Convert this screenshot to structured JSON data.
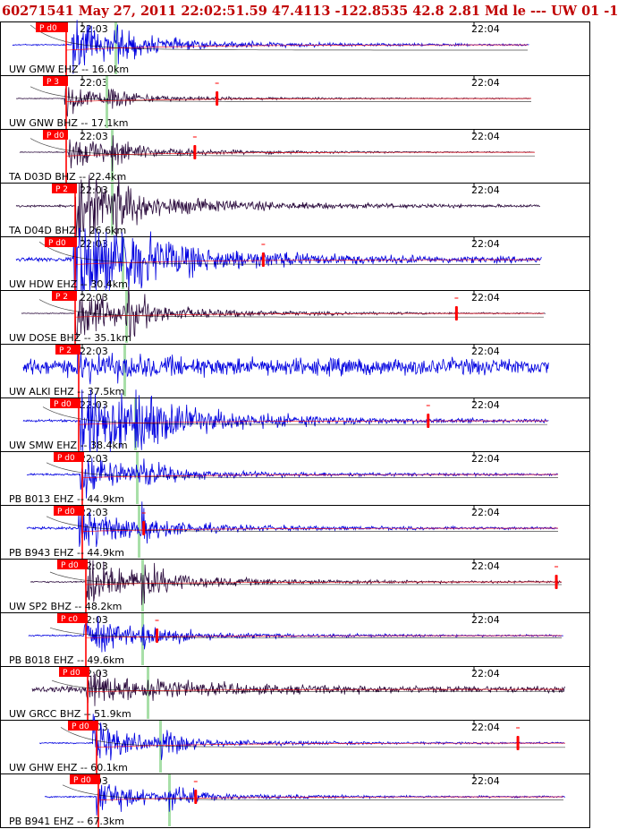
{
  "header": {
    "title": "60271541 May 27, 2011 22:02:51.59    47.4113 -122.8535 42.8 2.81 Md le --- UW 01   -1"
  },
  "colors": {
    "header_text": "#c00000",
    "trace_ehz": "#0000e0",
    "trace_bhz": "#2a0a3c",
    "p_pick": "#ff0000",
    "s_marker": "#9edc9e",
    "frame": "#000000"
  },
  "chart_data": {
    "type": "line",
    "title": "",
    "time_ticks": [
      "22:03",
      "22:04"
    ],
    "traces": [
      {
        "label": "UW GMW EHZ -- 16.0km",
        "channel": "EHZ",
        "pick": "P d0",
        "amp": 0.55,
        "coda": 0.25,
        "noise": 0.02,
        "tmark": 1.0,
        "rmark": null
      },
      {
        "label": "UW GNW BHZ -- 17.1km",
        "channel": "BHZ",
        "pick": "P 3",
        "amp": 0.4,
        "coda": 0.12,
        "noise": 0.01,
        "tmark": 0.6,
        "rmark": 0.39
      },
      {
        "label": "TA D03D BHZ -- 22.4km",
        "channel": "BHZ",
        "pick": "P d0",
        "amp": 0.45,
        "coda": 0.18,
        "noise": 0.01,
        "tmark": 0.7,
        "rmark": 0.34
      },
      {
        "label": "TA D04D BHZ -- 26.6km",
        "channel": "BHZ",
        "pick": "P 2",
        "amp": 0.8,
        "coda": 0.4,
        "noise": 0.03,
        "tmark": 0.0,
        "rmark": null
      },
      {
        "label": "UW HDW EHZ -- 30.4km",
        "channel": "EHZ",
        "pick": "P d0",
        "amp": 1.1,
        "coda": 0.8,
        "noise": 0.06,
        "tmark": 0.9,
        "rmark": 0.47
      },
      {
        "label": "UW DOSE BHZ -- 35.1km",
        "channel": "BHZ",
        "pick": "P 2",
        "amp": 0.7,
        "coda": 0.3,
        "noise": 0.01,
        "tmark": 0.7,
        "rmark": 0.83
      },
      {
        "label": "UW ALKI EHZ -- 37.5km",
        "channel": "EHZ",
        "pick": "P 2",
        "amp": 0.2,
        "coda": 0.1,
        "noise": 0.22,
        "tmark": 0.0,
        "rmark": null
      },
      {
        "label": "UW SMW EHZ -- 38.4km",
        "channel": "EHZ",
        "pick": "P d0",
        "amp": 1.1,
        "coda": 0.7,
        "noise": 0.03,
        "tmark": 0.7,
        "rmark": 0.77
      },
      {
        "label": "PB B013 EHZ -- 44.9km",
        "channel": "EHZ",
        "pick": "P d0",
        "amp": 0.6,
        "coda": 0.2,
        "noise": 0.03,
        "tmark": 0.6,
        "rmark": null
      },
      {
        "label": "PB B943 EHZ -- 44.9km",
        "channel": "EHZ",
        "pick": "P d0",
        "amp": 0.6,
        "coda": 0.22,
        "noise": 0.03,
        "tmark": 0.6,
        "rmark": 0.22
      },
      {
        "label": "UW SP2 BHZ -- 48.2km",
        "channel": "BHZ",
        "pick": "P d0",
        "amp": 0.6,
        "coda": 0.3,
        "noise": 0.02,
        "tmark": 0.5,
        "rmark": 0.99
      },
      {
        "label": "PB B018 EHZ -- 49.6km",
        "channel": "EHZ",
        "pick": "P c0",
        "amp": 0.5,
        "coda": 0.2,
        "noise": 0.02,
        "tmark": 0.4,
        "rmark": 0.24
      },
      {
        "label": "UW GRCC BHZ -- 51.9km",
        "channel": "BHZ",
        "pick": "P d0",
        "amp": 0.35,
        "coda": 0.25,
        "noise": 0.08,
        "tmark": 0.45,
        "rmark": null
      },
      {
        "label": "UW GHW EHZ -- 60.1km",
        "channel": "EHZ",
        "pick": "P d0",
        "amp": 0.55,
        "coda": 0.18,
        "noise": 0.02,
        "tmark": 0.8,
        "rmark": 0.91
      },
      {
        "label": "PB B941 EHZ -- 67.3km",
        "channel": "EHZ",
        "pick": "P d0",
        "amp": 0.5,
        "coda": 0.15,
        "noise": 0.02,
        "tmark": 0.6,
        "rmark": 0.29
      }
    ]
  }
}
